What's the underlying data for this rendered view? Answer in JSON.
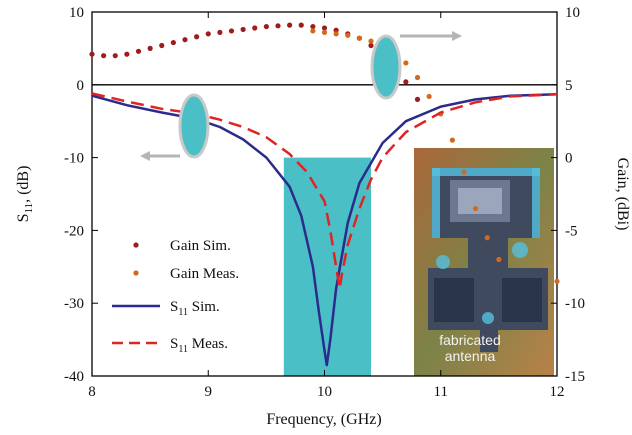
{
  "chart_data": {
    "type": "line",
    "xlabel": "Frequency, (GHz)",
    "ylabel_left_main": "S",
    "ylabel_left_sub": "11",
    "ylabel_left_rest": ", (dB)",
    "ylabel_right": "Gain, (dBi)",
    "xlim": [
      8,
      12
    ],
    "ylim_left": [
      -40,
      10
    ],
    "ylim_right": [
      -15,
      10
    ],
    "x_ticks": [
      "8",
      "9",
      "10",
      "11",
      "12"
    ],
    "y_left_ticks": [
      "-40",
      "-30",
      "-20",
      "-10",
      "0",
      "10"
    ],
    "y_right_ticks": [
      "-15",
      "-10",
      "-5",
      "0",
      "5",
      "10"
    ],
    "band": {
      "x_start": 9.65,
      "x_end": 10.4,
      "y_top": -10,
      "y_bottom": -40,
      "color": "#4bbfc6"
    },
    "series": [
      {
        "name": "Gain Sim.",
        "axis": "right",
        "style": "dots",
        "color": "#a01c1c",
        "x": [
          8.0,
          8.1,
          8.2,
          8.3,
          8.4,
          8.5,
          8.6,
          8.7,
          8.8,
          8.9,
          9.0,
          9.1,
          9.2,
          9.3,
          9.4,
          9.5,
          9.6,
          9.7,
          9.8,
          9.9,
          10.0,
          10.1,
          10.2,
          10.3,
          10.4,
          10.5,
          10.6,
          10.7,
          10.8
        ],
        "values": [
          7.1,
          7.0,
          7.0,
          7.1,
          7.3,
          7.5,
          7.7,
          7.9,
          8.1,
          8.3,
          8.5,
          8.6,
          8.7,
          8.8,
          8.9,
          9.0,
          9.05,
          9.1,
          9.1,
          9.0,
          8.9,
          8.75,
          8.5,
          8.2,
          7.7,
          7.0,
          6.2,
          5.2,
          4.0
        ]
      },
      {
        "name": "Gain Meas.",
        "axis": "right",
        "style": "dots",
        "color": "#d2691e",
        "x": [
          9.9,
          10.0,
          10.1,
          10.2,
          10.3,
          10.4,
          10.5,
          10.6,
          10.7,
          10.8,
          10.9,
          11.0,
          11.1,
          11.2,
          11.3,
          11.4,
          11.5,
          12.0
        ],
        "values": [
          8.7,
          8.6,
          8.5,
          8.4,
          8.2,
          8.0,
          7.7,
          7.2,
          6.5,
          5.5,
          4.2,
          3.0,
          1.2,
          -1.0,
          -3.5,
          -5.5,
          -7.0,
          -8.5
        ]
      },
      {
        "name_main": "S",
        "name_sub": "11",
        "name_rest": " Sim.",
        "axis": "left",
        "style": "solid",
        "color": "#2b2b8c",
        "x": [
          8.0,
          8.3,
          8.6,
          8.9,
          9.1,
          9.3,
          9.5,
          9.7,
          9.8,
          9.9,
          9.95,
          10.0,
          10.02,
          10.05,
          10.1,
          10.2,
          10.3,
          10.5,
          10.7,
          11.0,
          11.3,
          11.6,
          12.0
        ],
        "values": [
          -1.5,
          -2.8,
          -3.8,
          -4.7,
          -5.8,
          -7.5,
          -10.0,
          -14.0,
          -18.0,
          -25.0,
          -31.0,
          -36.5,
          -38.5,
          -35.0,
          -28.0,
          -19.0,
          -13.5,
          -8.0,
          -5.0,
          -3.0,
          -2.0,
          -1.5,
          -1.3
        ]
      },
      {
        "name_main": "S",
        "name_sub": "11",
        "name_rest": " Meas.",
        "axis": "left",
        "style": "dashed",
        "color": "#e02424",
        "x": [
          8.0,
          8.3,
          8.6,
          8.9,
          9.1,
          9.3,
          9.5,
          9.7,
          9.85,
          10.0,
          10.05,
          10.1,
          10.13,
          10.15,
          10.2,
          10.3,
          10.4,
          10.5,
          10.7,
          11.0,
          11.3,
          11.6,
          12.0
        ],
        "values": [
          -1.2,
          -2.3,
          -3.3,
          -4.0,
          -4.8,
          -5.8,
          -7.2,
          -9.5,
          -12.0,
          -16.0,
          -20.0,
          -25.0,
          -28.0,
          -26.0,
          -22.0,
          -17.0,
          -13.0,
          -10.0,
          -6.5,
          -3.8,
          -2.4,
          -1.6,
          -1.3
        ]
      }
    ],
    "photo_label_line1": "fabricated",
    "photo_label_line2": "antenna"
  }
}
